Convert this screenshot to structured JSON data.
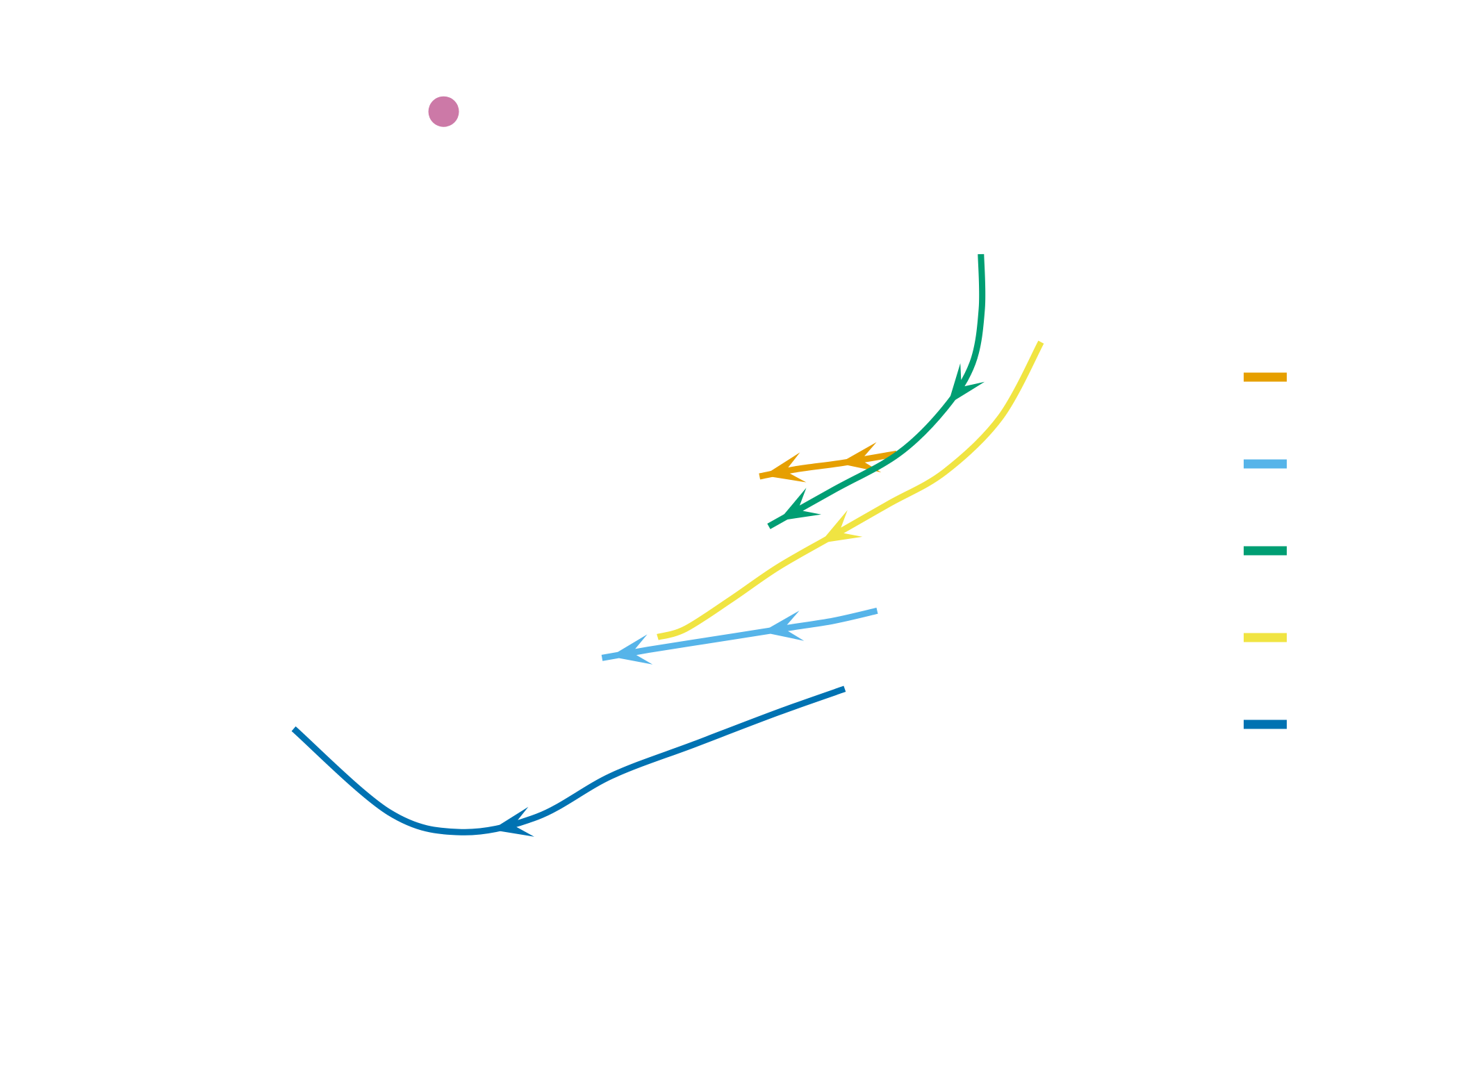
{
  "chart_data": {
    "type": "line",
    "title": "",
    "xlabel": "",
    "ylabel": "",
    "grid": false,
    "axes_visible": false,
    "legend": {
      "placement": "right",
      "entries_labeled": false
    },
    "marker_point": {
      "color": "#CC79A7",
      "x": 4.79,
      "y": 10.77
    },
    "series": [
      {
        "color": "#E69F00",
        "arrows": 2,
        "x": [
          9.68,
          9.1,
          8.6,
          8.2
        ],
        "y": [
          7.0,
          6.9,
          6.83,
          6.75
        ]
      },
      {
        "color": "#56B4E9",
        "arrows": 2,
        "x": [
          9.47,
          9.0,
          8.5,
          8.0,
          7.5,
          7.0,
          6.5
        ],
        "y": [
          5.27,
          5.16,
          5.08,
          5.0,
          4.92,
          4.84,
          4.75
        ]
      },
      {
        "color": "#009E73",
        "arrows": 2,
        "x": [
          10.59,
          10.6,
          10.5,
          10.2,
          9.7,
          9.0,
          8.3
        ],
        "y": [
          9.2,
          8.6,
          8.0,
          7.5,
          7.0,
          6.6,
          6.2
        ]
      },
      {
        "color": "#F0E442",
        "arrows": 1,
        "x": [
          11.24,
          10.8,
          10.2,
          9.6,
          9.0,
          8.4,
          7.9,
          7.4,
          7.1
        ],
        "y": [
          8.23,
          7.4,
          6.8,
          6.45,
          6.1,
          5.75,
          5.4,
          5.07,
          4.98
        ]
      },
      {
        "color": "#0072B2",
        "arrows": 1,
        "x": [
          9.12,
          8.4,
          7.5,
          6.6,
          5.8,
          4.98,
          4.2,
          3.17
        ],
        "y": [
          4.41,
          4.15,
          3.8,
          3.45,
          3.0,
          2.83,
          3.05,
          3.97
        ]
      }
    ]
  }
}
